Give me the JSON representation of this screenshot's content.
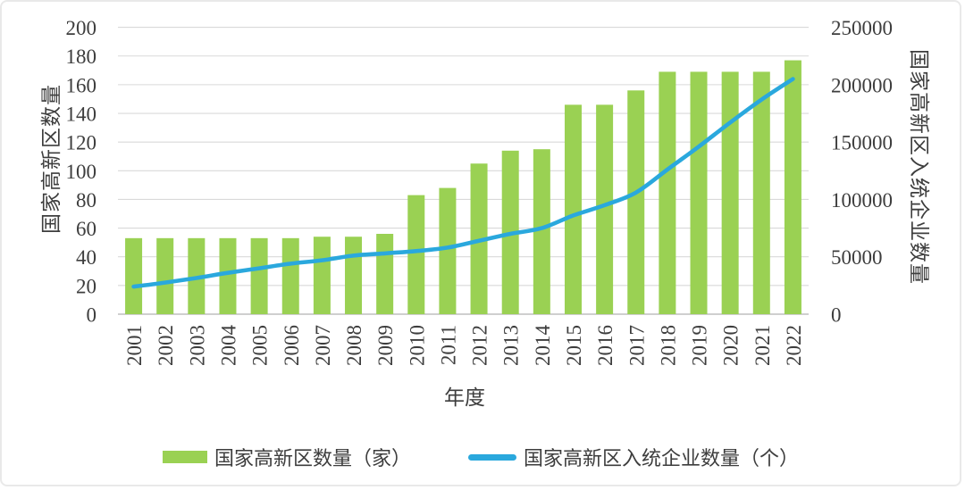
{
  "chart_data": {
    "type": "combo-bar-line",
    "title": "",
    "categories": [
      "2001",
      "2002",
      "2003",
      "2004",
      "2005",
      "2006",
      "2007",
      "2008",
      "2009",
      "2010",
      "2011",
      "2012",
      "2013",
      "2014",
      "2015",
      "2016",
      "2017",
      "2018",
      "2019",
      "2020",
      "2021",
      "2022"
    ],
    "series": [
      {
        "name": "国家高新区数量（家）",
        "type": "bar",
        "axis": "left",
        "color": "#9ad153",
        "values": [
          53,
          53,
          53,
          53,
          53,
          53,
          54,
          54,
          56,
          83,
          88,
          105,
          114,
          115,
          146,
          146,
          156,
          169,
          169,
          169,
          169,
          177
        ]
      },
      {
        "name": "国家高新区入统企业数量（个）",
        "type": "line",
        "axis": "right",
        "color": "#2aa8dd",
        "values": [
          24000,
          27500,
          31500,
          36000,
          40000,
          44000,
          47000,
          51000,
          53000,
          55000,
          58000,
          64000,
          70000,
          75000,
          86000,
          95000,
          106000,
          126000,
          146000,
          167000,
          187000,
          205000
        ]
      }
    ],
    "left_axis": {
      "label": "国家高新区数量",
      "min": 0,
      "max": 200,
      "step": 20
    },
    "right_axis": {
      "label": "国家高新区入统企业数量",
      "min": 0,
      "max": 250000,
      "step": 50000
    },
    "x_axis": {
      "label": "年度"
    },
    "grid": true,
    "legend_position": "bottom",
    "colors": {
      "gridline": "#d9d9d9",
      "axis_line": "#bfbfbf",
      "text": "#3d3d3d",
      "background": "#ffffff"
    }
  }
}
